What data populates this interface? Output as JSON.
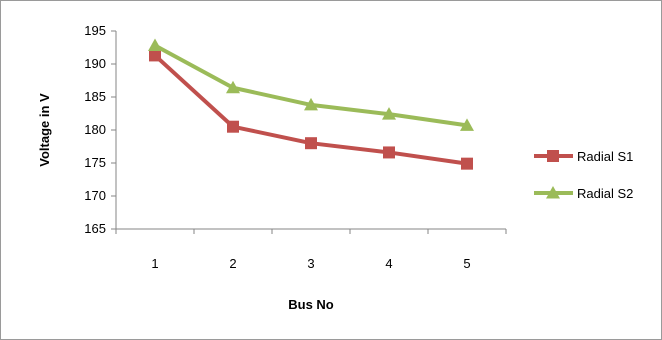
{
  "chart_data": {
    "type": "line",
    "x": [
      1,
      2,
      3,
      4,
      5
    ],
    "xlabel": "Bus No",
    "ylabel": "Voltage in V",
    "ylim": [
      165,
      195
    ],
    "yticks": [
      165,
      170,
      175,
      180,
      185,
      190,
      195
    ],
    "grid": false,
    "legend_position": "right",
    "series": [
      {
        "name": "Radial S1",
        "values": [
          191.3,
          180.5,
          178.0,
          176.6,
          174.9
        ],
        "color": "#c0504d",
        "marker": "square"
      },
      {
        "name": "Radial S2",
        "values": [
          192.8,
          186.4,
          183.8,
          182.4,
          180.7
        ],
        "color": "#9bbb59",
        "marker": "triangle"
      }
    ]
  }
}
